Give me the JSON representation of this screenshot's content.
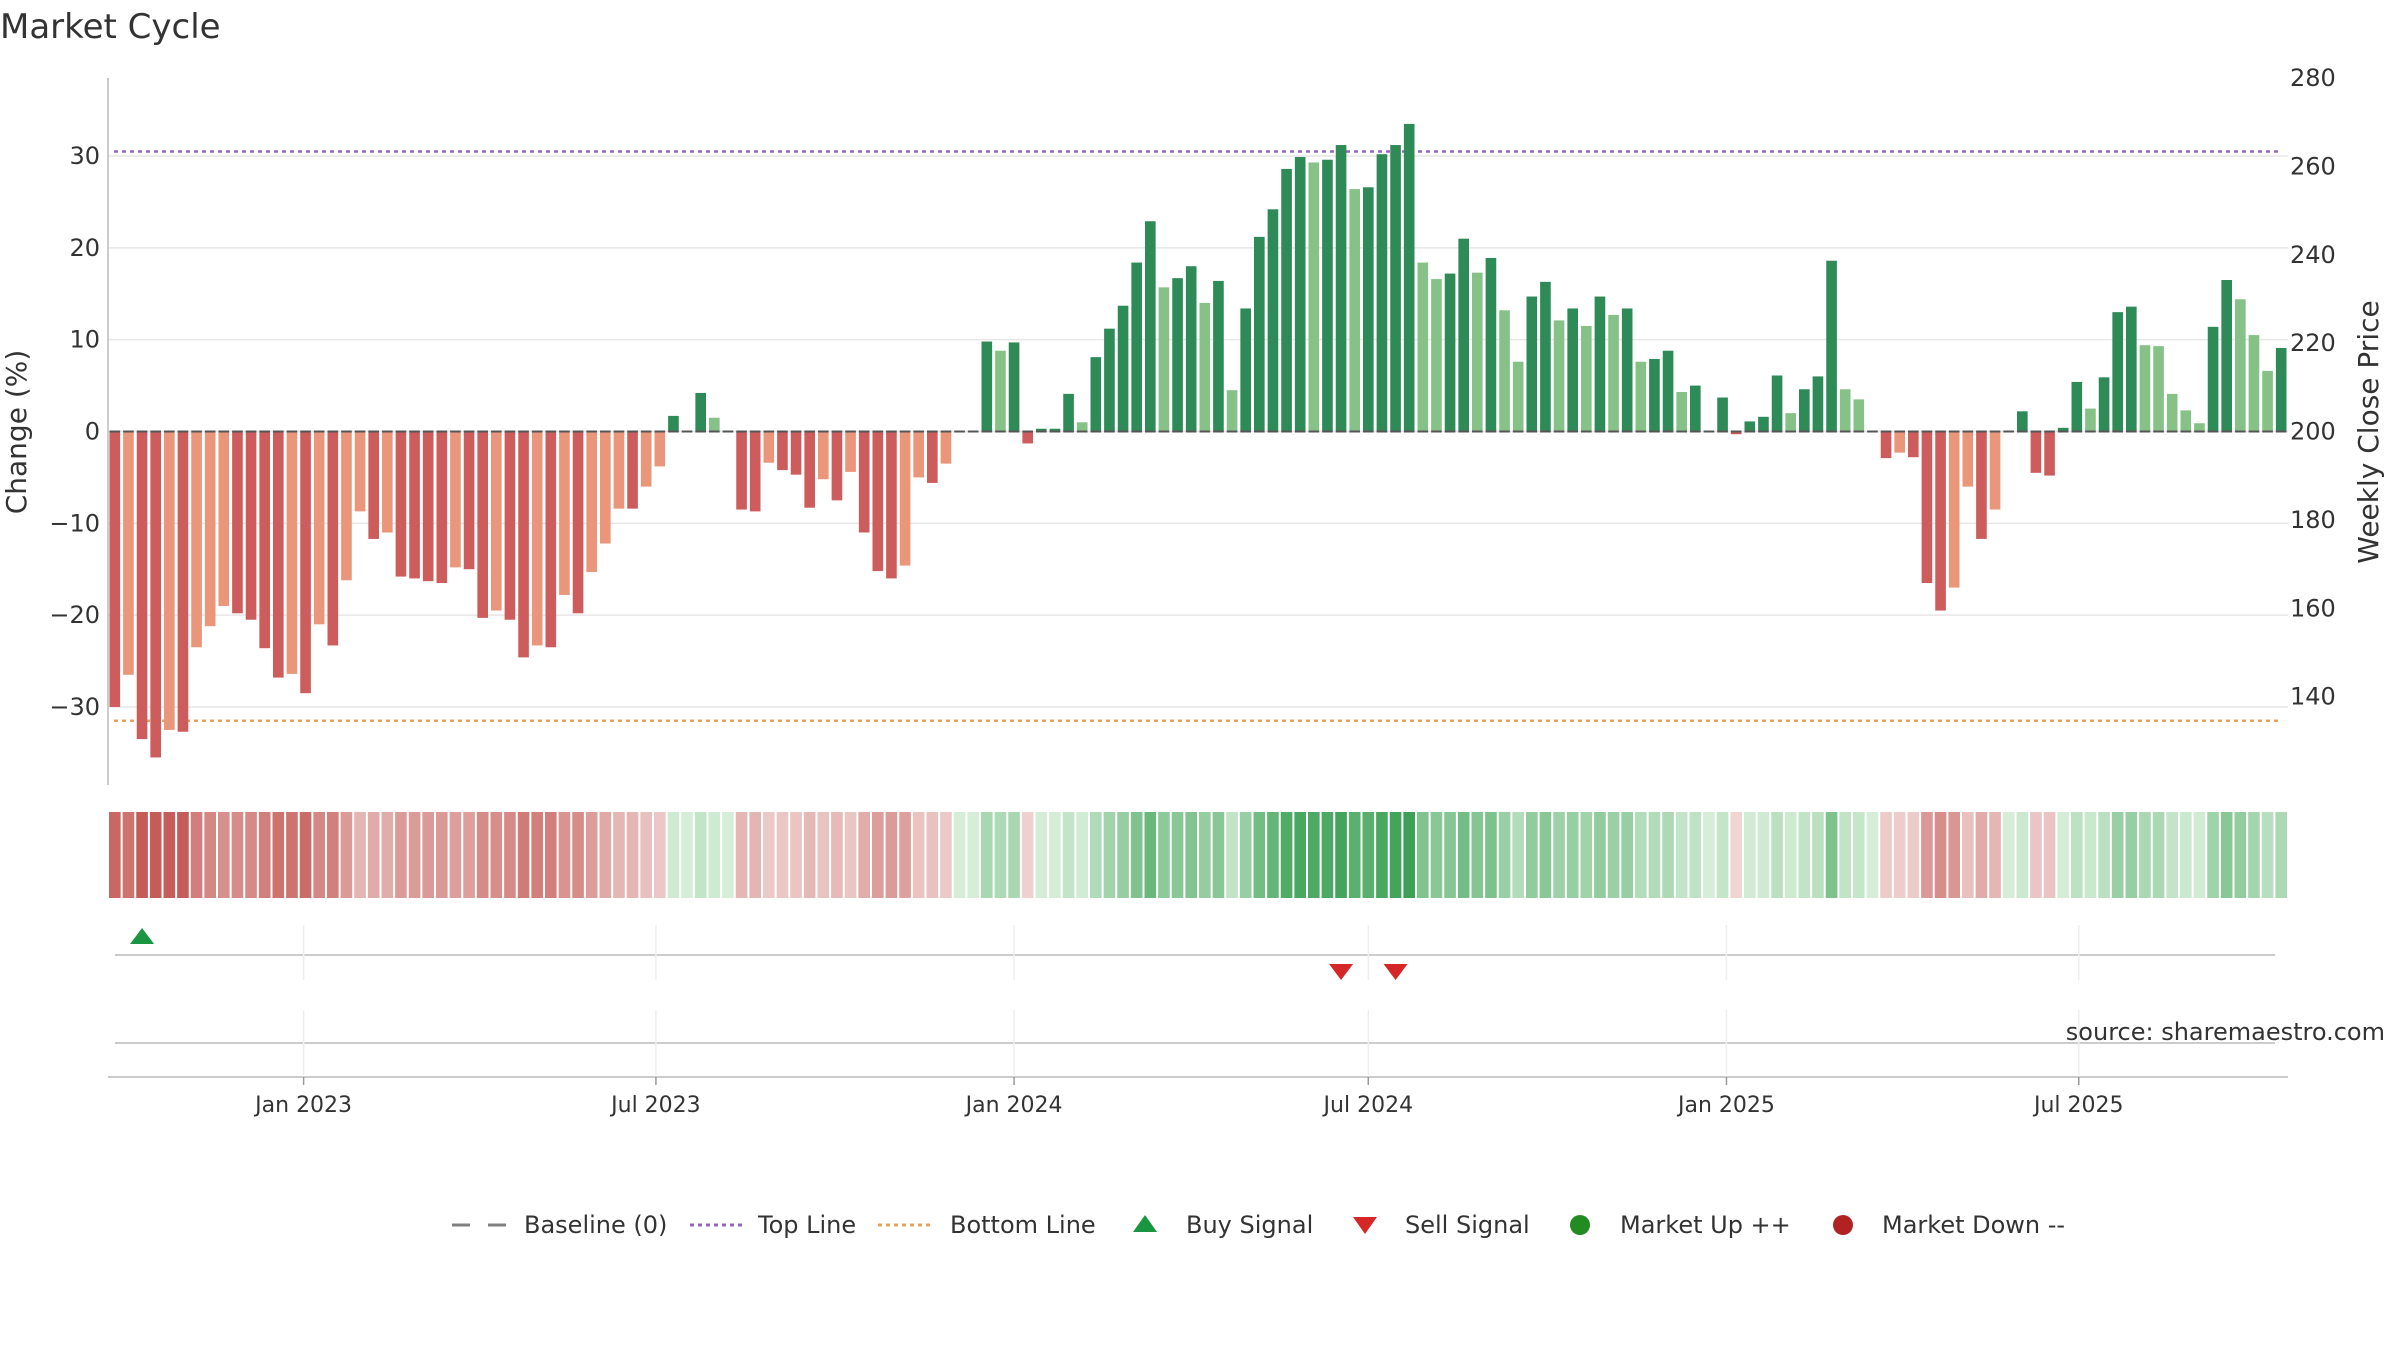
{
  "chart_data": {
    "type": "bar",
    "title": "Market Cycle",
    "ylabel_left": "Change (%)",
    "ylabel_right": "Weekly Close Price",
    "ylim_left": [
      -38.5,
      38.5
    ],
    "ylim_right": [
      120,
      280
    ],
    "yticks_left": [
      -30,
      -20,
      -10,
      0,
      10,
      20,
      30
    ],
    "yticks_right": [
      140,
      160,
      180,
      200,
      220,
      240,
      260,
      280
    ],
    "ytick_labels_left": [
      "−30",
      "−20",
      "−10",
      "0",
      "10",
      "20",
      "30"
    ],
    "ytick_labels_right": [
      "140",
      "160",
      "180",
      "200",
      "220",
      "240",
      "260",
      "280"
    ],
    "top_line": 30.5,
    "bottom_line": -31.5,
    "x_start": "2022-09-26",
    "x_step_days": 7,
    "x_ticks": [
      {
        "date": "2023-01-01",
        "label": "Jan 2023"
      },
      {
        "date": "2023-07-01",
        "label": "Jul 2023"
      },
      {
        "date": "2024-01-01",
        "label": "Jan 2024"
      },
      {
        "date": "2024-07-01",
        "label": "Jul 2024"
      },
      {
        "date": "2025-01-01",
        "label": "Jan 2025"
      },
      {
        "date": "2025-07-01",
        "label": "Jul 2025"
      }
    ],
    "values": [
      -30,
      -26.5,
      -33.5,
      -35.5,
      -32.5,
      -32.7,
      -23.5,
      -21.2,
      -19,
      -19.8,
      -20.5,
      -23.6,
      -26.8,
      -26.4,
      -28.5,
      -21,
      -23.3,
      -16.2,
      -8.7,
      -11.7,
      -11,
      -15.8,
      -16,
      -16.3,
      -16.5,
      -14.8,
      -15,
      -20.3,
      -19.5,
      -20.5,
      -24.6,
      -23.3,
      -23.5,
      -17.8,
      -19.8,
      -15.3,
      -12.2,
      -8.4,
      -8.4,
      -6,
      -3.8,
      1.7,
      0,
      4.2,
      1.5,
      0,
      -8.5,
      -8.7,
      -3.4,
      -4.2,
      -4.7,
      -8.3,
      -5.2,
      -7.5,
      -4.4,
      -11,
      -15.2,
      -16,
      -14.6,
      -5,
      -5.6,
      -3.5,
      0,
      0,
      9.8,
      8.8,
      9.7,
      -1.3,
      0.3,
      0.3,
      4.1,
      1,
      8.1,
      11.2,
      13.7,
      18.4,
      22.9,
      15.7,
      16.7,
      18,
      14,
      16.4,
      4.5,
      13.4,
      21.2,
      24.2,
      28.6,
      29.9,
      29.3,
      29.6,
      31.2,
      26.4,
      26.6,
      30.2,
      31.2,
      33.5,
      18.4,
      16.6,
      17.2,
      21,
      17.3,
      18.9,
      13.2,
      7.6,
      14.7,
      16.3,
      12.1,
      13.4,
      11.5,
      14.7,
      12.7,
      13.4,
      7.6,
      7.9,
      8.8,
      4.3,
      5,
      0,
      3.7,
      -0.3,
      1.1,
      1.6,
      6.1,
      2,
      4.6,
      6,
      18.6,
      4.6,
      3.5,
      0,
      -2.9,
      -2.3,
      -2.8,
      -16.5,
      -19.5,
      -17,
      -6,
      -11.7,
      -8.5,
      0,
      2.2,
      -4.5,
      -4.8,
      0.4,
      5.4,
      2.5,
      5.9,
      13,
      13.6,
      9.4,
      9.3,
      4.1,
      2.3,
      0.9,
      11.4,
      16.5,
      14.4,
      10.5,
      6.6,
      9.1
    ],
    "colors": {
      "up_strong": "#2e8b57",
      "up_light": "#86c287",
      "down_strong": "#cd5c5c",
      "down_light": "#e9967a",
      "top_line": "#9467bd",
      "bottom_line": "#e8a05a",
      "buy": "#1a9641",
      "sell": "#d62728",
      "market_up": "#228b22",
      "market_down": "#b22222",
      "baseline": "#808080"
    },
    "buy_signals": [
      2
    ],
    "sell_signals": [
      90,
      94
    ],
    "annotation": "source: sharemaestro.com",
    "legend": [
      {
        "label": "Baseline (0)",
        "marker": "dash"
      },
      {
        "label": "Top Line",
        "marker": "dotted-purple"
      },
      {
        "label": "Bottom Line",
        "marker": "dotted-orange"
      },
      {
        "label": "Buy Signal",
        "marker": "triangle-up"
      },
      {
        "label": "Sell Signal",
        "marker": "triangle-down"
      },
      {
        "label": "Market Up ++",
        "marker": "circle-green"
      },
      {
        "label": "Market Down --",
        "marker": "circle-red"
      }
    ],
    "legend_position": "bottom-center",
    "grid": true
  }
}
